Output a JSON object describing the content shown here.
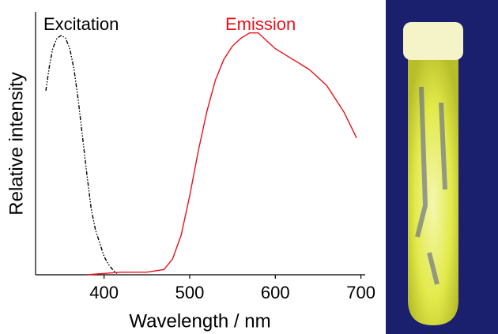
{
  "chart_data": {
    "type": "line",
    "xlabel": "Wavelength / nm",
    "ylabel": "Relative intensity",
    "xlim": [
      320,
      705
    ],
    "ylim": [
      0,
      1
    ],
    "xticks": [
      400,
      500,
      600,
      700
    ],
    "series": [
      {
        "name": "Excitation",
        "color": "#000000",
        "linestyle": "dashdotdot",
        "x": [
          332,
          336,
          340,
          345,
          350,
          355,
          360,
          365,
          370,
          375,
          380,
          385,
          390,
          395,
          400,
          405,
          410,
          415
        ],
        "values": [
          0.7,
          0.79,
          0.86,
          0.9,
          0.91,
          0.9,
          0.86,
          0.78,
          0.66,
          0.52,
          0.38,
          0.25,
          0.17,
          0.12,
          0.07,
          0.04,
          0.02,
          0.005
        ]
      },
      {
        "name": "Emission",
        "color": "#e8101a",
        "linestyle": "solid",
        "x": [
          380,
          400,
          420,
          450,
          470,
          480,
          490,
          500,
          510,
          520,
          530,
          540,
          550,
          560,
          570,
          580,
          590,
          600,
          620,
          640,
          660,
          680,
          695
        ],
        "values": [
          0,
          0.005,
          0.01,
          0.01,
          0.02,
          0.06,
          0.15,
          0.3,
          0.47,
          0.62,
          0.74,
          0.82,
          0.87,
          0.9,
          0.92,
          0.92,
          0.89,
          0.86,
          0.82,
          0.78,
          0.72,
          0.62,
          0.52
        ]
      }
    ]
  }
}
